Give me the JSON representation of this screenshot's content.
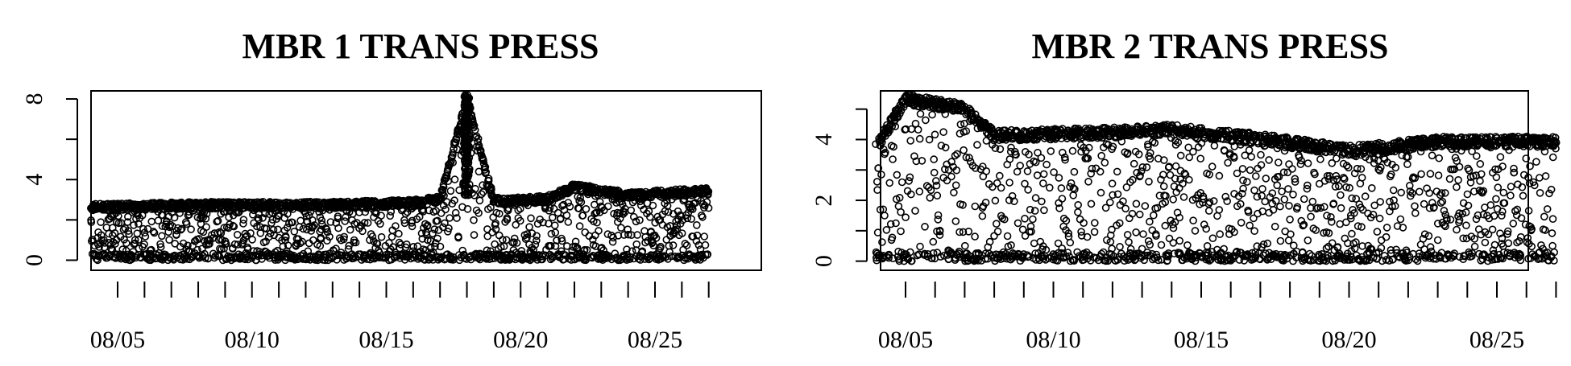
{
  "chart_data": [
    {
      "type": "scatter",
      "title": "MBR 1 TRANS PRESS",
      "xlabel": "",
      "ylabel": "",
      "x_range": [
        "08/04",
        "08/28"
      ],
      "ylim": [
        -0.5,
        8.4
      ],
      "y_ticks": [
        0,
        2,
        4,
        6,
        8
      ],
      "y_tick_labels": [
        "0",
        "",
        "4",
        "",
        "8"
      ],
      "x_tick_labels": [
        "08/05",
        "08/10",
        "08/15",
        "08/20",
        "08/25"
      ],
      "marker": "open-circle",
      "color": "#000000",
      "upper_envelope": [
        {
          "date": "08/04",
          "value": 2.8
        },
        {
          "date": "08/08",
          "value": 2.9
        },
        {
          "date": "08/12",
          "value": 2.9
        },
        {
          "date": "08/16",
          "value": 3.0
        },
        {
          "date": "08/17",
          "value": 3.2
        },
        {
          "date": "08/18",
          "value": 8.2
        },
        {
          "date": "08/19",
          "value": 3.1
        },
        {
          "date": "08/21",
          "value": 3.2
        },
        {
          "date": "08/22",
          "value": 3.8
        },
        {
          "date": "08/24",
          "value": 3.4
        },
        {
          "date": "08/27",
          "value": 3.6
        }
      ]
    },
    {
      "type": "scatter",
      "title": "MBR 2 TRANS PRESS",
      "xlabel": "",
      "ylabel": "",
      "x_range": [
        "08/04",
        "08/28"
      ],
      "ylim": [
        -0.3,
        5.6
      ],
      "y_ticks": [
        0,
        1,
        2,
        3,
        4,
        5
      ],
      "y_tick_labels": [
        "0",
        "",
        "2",
        "",
        "4",
        ""
      ],
      "x_tick_labels": [
        "08/05",
        "08/10",
        "08/15",
        "08/20",
        "08/25"
      ],
      "marker": "open-circle",
      "color": "#000000",
      "upper_envelope": [
        {
          "date": "08/04",
          "value": 3.9
        },
        {
          "date": "08/05",
          "value": 5.5
        },
        {
          "date": "08/07",
          "value": 5.2
        },
        {
          "date": "08/08",
          "value": 4.3
        },
        {
          "date": "08/12",
          "value": 4.4
        },
        {
          "date": "08/14",
          "value": 4.5
        },
        {
          "date": "08/17",
          "value": 4.2
        },
        {
          "date": "08/20",
          "value": 3.8
        },
        {
          "date": "08/23",
          "value": 4.1
        },
        {
          "date": "08/27",
          "value": 4.1
        }
      ]
    }
  ]
}
